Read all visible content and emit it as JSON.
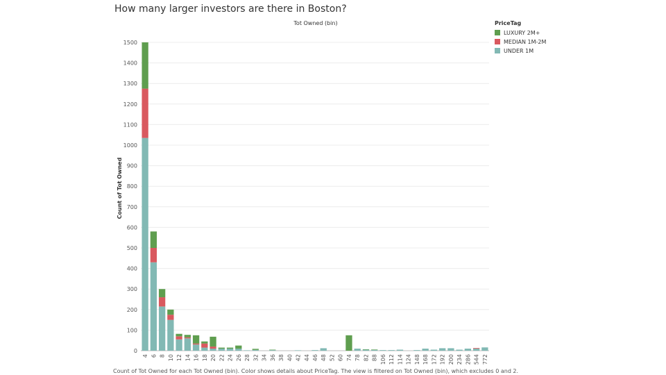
{
  "title": "How many larger investors are there in Boston?",
  "footnote": "Count of Tot Owned for each Tot Owned (bin).  Color shows details about PriceTag. The view is filtered on Tot Owned (bin), which excludes 0 and 2.",
  "legend": {
    "title": "PriceTag",
    "items": [
      {
        "label": "LUXURY 2M+",
        "color": "#5f9e4f"
      },
      {
        "label": "MEDIAN 1M-2M",
        "color": "#d9595f"
      },
      {
        "label": "UNDER 1M",
        "color": "#82b9b4"
      }
    ]
  },
  "chart_data": {
    "type": "bar",
    "stacked": true,
    "title": "How many larger investors are there in Boston?",
    "xlabel": "Tot Owned (bin)",
    "ylabel": "Count of Tot Owned",
    "ylim": [
      0,
      1500
    ],
    "yticks": [
      0,
      100,
      200,
      300,
      400,
      500,
      600,
      700,
      800,
      900,
      1000,
      1100,
      1200,
      1300,
      1400,
      1500
    ],
    "grid": true,
    "legend_position": "top-right",
    "categories": [
      "4",
      "6",
      "8",
      "10",
      "12",
      "14",
      "16",
      "18",
      "20",
      "22",
      "24",
      "26",
      "28",
      "32",
      "34",
      "36",
      "38",
      "40",
      "42",
      "44",
      "46",
      "48",
      "52",
      "60",
      "74",
      "78",
      "82",
      "88",
      "106",
      "112",
      "114",
      "124",
      "148",
      "168",
      "172",
      "192",
      "200",
      "234",
      "286",
      "544",
      "772"
    ],
    "series": [
      {
        "name": "UNDER 1M",
        "color": "#82b9b4",
        "values": [
          1035,
          430,
          215,
          150,
          55,
          60,
          30,
          15,
          10,
          10,
          10,
          10,
          2,
          4,
          0,
          3,
          0,
          0,
          2,
          0,
          3,
          12,
          0,
          0,
          0,
          10,
          5,
          4,
          3,
          3,
          5,
          0,
          3,
          10,
          5,
          12,
          12,
          5,
          10,
          10,
          16
        ]
      },
      {
        "name": "MEDIAN 1M-2M",
        "color": "#d9595f",
        "values": [
          240,
          70,
          45,
          25,
          15,
          5,
          5,
          20,
          10,
          0,
          0,
          0,
          0,
          0,
          0,
          0,
          0,
          0,
          0,
          0,
          0,
          0,
          0,
          0,
          0,
          0,
          0,
          0,
          0,
          0,
          0,
          0,
          0,
          0,
          0,
          0,
          0,
          0,
          0,
          3,
          0
        ]
      },
      {
        "name": "LUXURY 2M+",
        "color": "#5f9e4f",
        "values": [
          225,
          80,
          40,
          25,
          12,
          12,
          40,
          10,
          48,
          5,
          5,
          15,
          0,
          5,
          0,
          2,
          0,
          0,
          0,
          0,
          0,
          0,
          0,
          0,
          75,
          0,
          2,
          2,
          0,
          0,
          0,
          0,
          0,
          0,
          0,
          0,
          0,
          0,
          0,
          0,
          0
        ]
      }
    ]
  }
}
